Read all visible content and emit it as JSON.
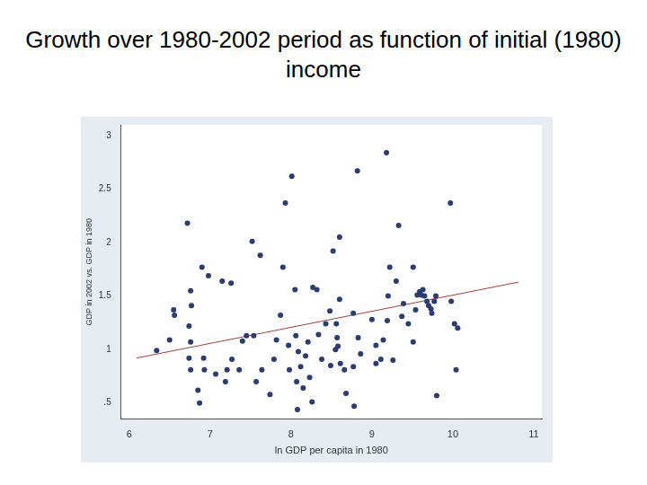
{
  "chart_data": {
    "type": "scatter",
    "title": "Growth over 1980-2002 period as function of initial (1980) income",
    "x_label": "ln GDP per capita in 1980",
    "y_label": "GDP in 2002 vs. GDP in 1980",
    "xlim": [
      5.9,
      11.1
    ],
    "xticks": [
      6,
      7,
      8,
      9,
      10,
      11
    ],
    "ylim": [
      0.35,
      3.1
    ],
    "yticks": [
      {
        "value": 0.5,
        "label": ".5"
      },
      1,
      1.5,
      2,
      2.5,
      3
    ],
    "grid": false,
    "series": [
      {
        "type": "scatter",
        "marker": "circle",
        "color": "#2b3c70",
        "x": [
          6.34,
          6.5,
          6.55,
          6.56,
          6.72,
          6.76,
          6.77,
          6.74,
          6.76,
          6.74,
          6.76,
          6.85,
          6.87,
          6.9,
          6.92,
          6.93,
          6.98,
          7.07,
          7.15,
          7.26,
          7.21,
          7.19,
          7.27,
          7.36,
          7.4,
          7.45,
          7.54,
          7.52,
          7.62,
          7.57,
          7.64,
          7.74,
          7.79,
          7.82,
          7.87,
          7.9,
          7.93,
          7.97,
          7.98,
          8.01,
          8.05,
          8.06,
          8.09,
          8.07,
          8.08,
          8.12,
          8.15,
          8.18,
          8.21,
          8.23,
          8.26,
          8.27,
          8.32,
          8.34,
          8.38,
          8.43,
          8.48,
          8.49,
          8.52,
          8.55,
          8.56,
          8.57,
          8.58,
          8.6,
          8.6,
          8.61,
          8.66,
          8.68,
          8.77,
          8.77,
          8.78,
          8.82,
          8.83,
          8.86,
          9.0,
          9.05,
          9.05,
          9.11,
          9.14,
          9.18,
          9.19,
          9.2,
          9.22,
          9.26,
          9.3,
          9.33,
          9.37,
          9.39,
          9.45,
          9.51,
          9.51,
          9.54,
          9.56,
          9.59,
          9.61,
          9.63,
          9.65,
          9.68,
          9.7,
          9.73,
          9.74,
          9.77,
          9.79,
          9.8,
          9.97,
          9.98,
          10.02,
          10.04,
          10.06
        ],
        "values": [
          0.99,
          1.09,
          1.37,
          1.32,
          2.18,
          1.55,
          1.41,
          1.22,
          1.07,
          0.92,
          0.81,
          0.62,
          0.5,
          1.77,
          0.92,
          0.81,
          1.69,
          0.77,
          1.64,
          1.62,
          0.81,
          0.7,
          0.91,
          0.81,
          1.08,
          1.13,
          1.13,
          2.01,
          1.88,
          0.7,
          0.81,
          0.58,
          0.91,
          1.09,
          1.32,
          1.77,
          2.37,
          1.04,
          0.81,
          2.62,
          1.56,
          1.13,
          0.98,
          0.7,
          0.44,
          0.84,
          0.64,
          0.94,
          1.07,
          0.74,
          0.51,
          1.58,
          1.56,
          1.14,
          0.91,
          1.24,
          1.36,
          0.85,
          1.92,
          1.0,
          1.24,
          1.11,
          1.03,
          2.05,
          1.47,
          0.87,
          0.81,
          0.59,
          1.34,
          0.84,
          0.47,
          2.67,
          1.11,
          0.96,
          1.28,
          1.04,
          0.87,
          0.91,
          1.09,
          2.84,
          1.27,
          1.5,
          1.77,
          0.9,
          1.64,
          2.16,
          1.31,
          1.43,
          1.24,
          1.07,
          1.77,
          1.37,
          1.51,
          1.54,
          1.51,
          1.56,
          1.5,
          1.45,
          1.41,
          1.38,
          1.34,
          1.45,
          1.5,
          0.57,
          2.37,
          1.45,
          1.24,
          0.81,
          1.2
        ]
      },
      {
        "type": "line",
        "line_style": "solid",
        "color": "#a0413c",
        "x": [
          6.09,
          10.81
        ],
        "values": [
          0.92,
          1.63
        ]
      }
    ]
  }
}
